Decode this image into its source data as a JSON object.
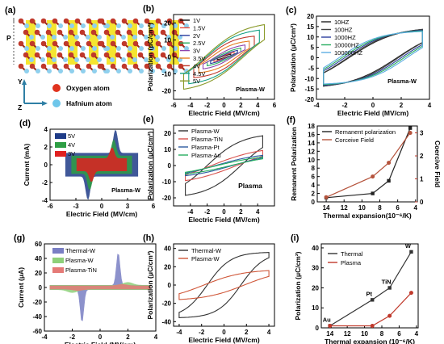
{
  "panels": {
    "a": {
      "label": "(a)",
      "p_label": "P",
      "axis_y": "Y",
      "axis_z": "Z",
      "legend": [
        {
          "text": "Oxygen atom",
          "color": "#e0331e"
        },
        {
          "text": "Hafnium atom",
          "color": "#6ec6ea"
        }
      ],
      "colors": {
        "oxygen": "#c0392b",
        "hafnium": "#8fd0ee",
        "yellow": "#f4e21a",
        "bond": "#9c2a1a"
      }
    }
  },
  "chart_data": [
    {
      "id": "b",
      "label": "(b)",
      "type": "line",
      "xlabel": "Electric Field (MV/cm)",
      "ylabel": "Polarization (μC/cm²)",
      "xlim": [
        -6,
        6
      ],
      "ylim": [
        -25,
        25
      ],
      "xticks": [
        -6,
        -4,
        -2,
        0,
        2,
        4,
        6
      ],
      "yticks": [
        -20,
        -10,
        0,
        10,
        20
      ],
      "annotation": "Plasma-W",
      "series": [
        {
          "name": "1V",
          "color": "#111111",
          "Emax": 0.8,
          "Ps": 3,
          "Pr": 0.5,
          "Ec": 0.3
        },
        {
          "name": "1.5V",
          "color": "#e74c3c",
          "Emax": 1.2,
          "Ps": 4,
          "Pr": 0.8,
          "Ec": 0.4
        },
        {
          "name": "2V",
          "color": "#2c3e9e",
          "Emax": 1.6,
          "Ps": 5,
          "Pr": 1.2,
          "Ec": 0.5
        },
        {
          "name": "2.5V",
          "color": "#27ae60",
          "Emax": 2.0,
          "Ps": 6.5,
          "Pr": 2,
          "Ec": 0.8
        },
        {
          "name": "3V",
          "color": "#8e44ad",
          "Emax": 2.5,
          "Ps": 8,
          "Pr": 3,
          "Ec": 1.0
        },
        {
          "name": "3.5V",
          "color": "#e67e22",
          "Emax": 3.0,
          "Ps": 10,
          "Pr": 5,
          "Ec": 1.5
        },
        {
          "name": "4V",
          "color": "#c0392b",
          "Emax": 3.6,
          "Ps": 13,
          "Pr": 7,
          "Ec": 1.9
        },
        {
          "name": "4.5V",
          "color": "#16a085",
          "Emax": 4.2,
          "Ps": 17,
          "Pr": 8.5,
          "Ec": 2.1
        },
        {
          "name": "5V",
          "color": "#8a9a2a",
          "Emax": 4.8,
          "Ps": 21,
          "Pr": 9.5,
          "Ec": 2.3
        }
      ]
    },
    {
      "id": "c",
      "label": "(c)",
      "type": "line",
      "xlabel": "Electric Field (MV/cm)",
      "ylabel": "Polarization (μC/cm²)",
      "xlim": [
        -4,
        4
      ],
      "ylim": [
        -20,
        20
      ],
      "xticks": [
        -4,
        -2,
        0,
        2,
        4
      ],
      "yticks": [
        -20,
        -15,
        -10,
        -5,
        0,
        5,
        10,
        15,
        20
      ],
      "annotation": "Plasma-W",
      "series": [
        {
          "name": "10HZ",
          "color": "#222222",
          "Emax": 3.5,
          "Ps": 15,
          "Pr": 7,
          "Ec": 1.7
        },
        {
          "name": "100HZ",
          "color": "#444444",
          "Emax": 3.5,
          "Ps": 14.5,
          "Pr": 7.5,
          "Ec": 1.8
        },
        {
          "name": "1000HZ",
          "color": "#2c3e9e",
          "Emax": 3.5,
          "Ps": 14,
          "Pr": 8,
          "Ec": 2.0
        },
        {
          "name": "10000HZ",
          "color": "#27ae60",
          "Emax": 3.5,
          "Ps": 13.5,
          "Pr": 8.5,
          "Ec": 2.2
        },
        {
          "name": "100000HZ",
          "color": "#5dade2",
          "Emax": 3.5,
          "Ps": 13,
          "Pr": 9,
          "Ec": 2.4
        }
      ]
    },
    {
      "id": "d",
      "label": "(d)",
      "type": "area",
      "xlabel": "Electric Field (MV/cm)",
      "ylabel": "Current (mA)",
      "xlim": [
        -6,
        6
      ],
      "ylim": [
        -4,
        4
      ],
      "xticks": [
        -6,
        -3,
        0,
        3,
        6
      ],
      "yticks": [
        -4,
        -2,
        0,
        2,
        4
      ],
      "annotation": "Plasma-W",
      "series": [
        {
          "name": "5V",
          "color": "#1f3c88",
          "Emax": 4.2,
          "band": 1.3,
          "peak": 2.6,
          "Ec": 1.6
        },
        {
          "name": "4V",
          "color": "#2e9e44",
          "Emax": 3.5,
          "band": 1.0,
          "peak": 1.8,
          "Ec": 1.4
        },
        {
          "name": "3V",
          "color": "#e02020",
          "Emax": 2.9,
          "band": 0.7,
          "peak": 1.2,
          "Ec": 1.2
        }
      ]
    },
    {
      "id": "e",
      "label": "(e)",
      "type": "line",
      "xlabel": "Electric Field (MV/cm)",
      "ylabel": "Polarization (μC/cm²)",
      "xlim": [
        -6,
        6
      ],
      "ylim": [
        -25,
        25
      ],
      "xticks": [
        -4,
        -2,
        0,
        2,
        4
      ],
      "yticks": [
        -20,
        -10,
        0,
        10,
        20
      ],
      "annotation": "Plasma",
      "series": [
        {
          "name": "Plasma-W",
          "color": "#333333",
          "Emax": 4.6,
          "Ps": 20,
          "Pr": 9,
          "Ec": 2.0
        },
        {
          "name": "Plasma-TiN",
          "color": "#d9534f",
          "Emax": 4.6,
          "Ps": 12,
          "Pr": 3,
          "Ec": 1.5
        },
        {
          "name": "Plasma-Pt",
          "color": "#2c5aa0",
          "Emax": 4.6,
          "Ps": 8,
          "Pr": 1.5,
          "Ec": 1.0
        },
        {
          "name": "Plasma-Au",
          "color": "#27ae60",
          "Emax": 4.6,
          "Ps": 7,
          "Pr": 1,
          "Ec": 0.8
        }
      ]
    },
    {
      "id": "f",
      "label": "(f)",
      "type": "line",
      "xlabel": "Thermal expansion(10⁻⁶/K)",
      "ylabel": "Remanent Polarization",
      "y2label": "Coercive Field",
      "xlim": [
        15,
        3.8
      ],
      "ylim": [
        0,
        18
      ],
      "y2lim": [
        0,
        3.3
      ],
      "xticks": [
        14,
        12,
        10,
        8,
        6,
        4
      ],
      "yticks": [
        0,
        2,
        4,
        6,
        8,
        10,
        12,
        14,
        16,
        18
      ],
      "y2ticks": [
        0,
        1,
        2,
        3
      ],
      "series": [
        {
          "name": "Remanent polarization",
          "color": "#222222",
          "axis": "left",
          "x": [
            14,
            8.8,
            7,
            4.6
          ],
          "y": [
            1,
            2,
            5,
            17.5
          ]
        },
        {
          "name": "Corceive Field",
          "color": "#b5533c",
          "axis": "right",
          "x": [
            14,
            8.8,
            7,
            4.6
          ],
          "y": [
            0.2,
            1.1,
            1.7,
            3.0
          ]
        }
      ]
    },
    {
      "id": "g",
      "label": "(g)",
      "type": "area",
      "xlabel": "Electric Field (MV/cm)",
      "ylabel": "Current (μA)",
      "xlim": [
        -4,
        4
      ],
      "ylim": [
        -60,
        60
      ],
      "xticks": [
        -4,
        -2,
        0,
        2,
        4
      ],
      "yticks": [
        -60,
        -40,
        -20,
        0,
        20,
        40,
        60
      ],
      "series": [
        {
          "name": "Thermal-W",
          "color": "#7a7fc4",
          "band": 3,
          "peak": 45,
          "Ec": 1.3,
          "width": 0.18
        },
        {
          "name": "Plasma-W",
          "color": "#8fd07a",
          "band": 3,
          "peak": 4,
          "Ec": 2.0,
          "width": 0.5
        },
        {
          "name": "Plasma-TiN",
          "color": "#e57a77",
          "band": 2.2,
          "peak": 2,
          "Ec": 1.6,
          "width": 0.5
        }
      ]
    },
    {
      "id": "h",
      "label": "(h)",
      "type": "line",
      "xlabel": "Electric Field (MV/cm)",
      "ylabel": "Polarization (μC/cm²)",
      "xlim": [
        -4.5,
        4.5
      ],
      "ylim": [
        -45,
        45
      ],
      "xticks": [
        -4,
        -2,
        0,
        2,
        4
      ],
      "yticks": [
        -40,
        -20,
        0,
        20,
        40
      ],
      "series": [
        {
          "name": "Thermal-W",
          "color": "#333333",
          "Emax": 4.0,
          "Ps": 36,
          "Pr": 22,
          "Ec": 1.5
        },
        {
          "name": "Plasma-W",
          "color": "#d0583a",
          "Emax": 4.0,
          "Ps": 17,
          "Pr": 8,
          "Ec": 1.8
        }
      ]
    },
    {
      "id": "i",
      "label": "(i)",
      "type": "line",
      "xlabel": "Thermal expansion (10⁻⁶/K)",
      "ylabel": "Polarization (μC/cm²)",
      "xlim": [
        15,
        3.8
      ],
      "ylim": [
        0,
        42
      ],
      "xticks": [
        14,
        12,
        10,
        8,
        6,
        4
      ],
      "yticks": [
        0,
        10,
        20,
        30,
        40
      ],
      "point_labels": [
        "Au",
        "Pt",
        "TiN",
        "W"
      ],
      "series": [
        {
          "name": "Thermal",
          "color": "#333333",
          "x": [
            14,
            9.1,
            7.1,
            4.6
          ],
          "y": [
            1,
            14,
            20,
            38
          ]
        },
        {
          "name": "Plasma",
          "color": "#c0392b",
          "x": [
            14,
            9.1,
            7.1,
            4.6
          ],
          "y": [
            1,
            1,
            6,
            17.5
          ]
        }
      ]
    }
  ]
}
